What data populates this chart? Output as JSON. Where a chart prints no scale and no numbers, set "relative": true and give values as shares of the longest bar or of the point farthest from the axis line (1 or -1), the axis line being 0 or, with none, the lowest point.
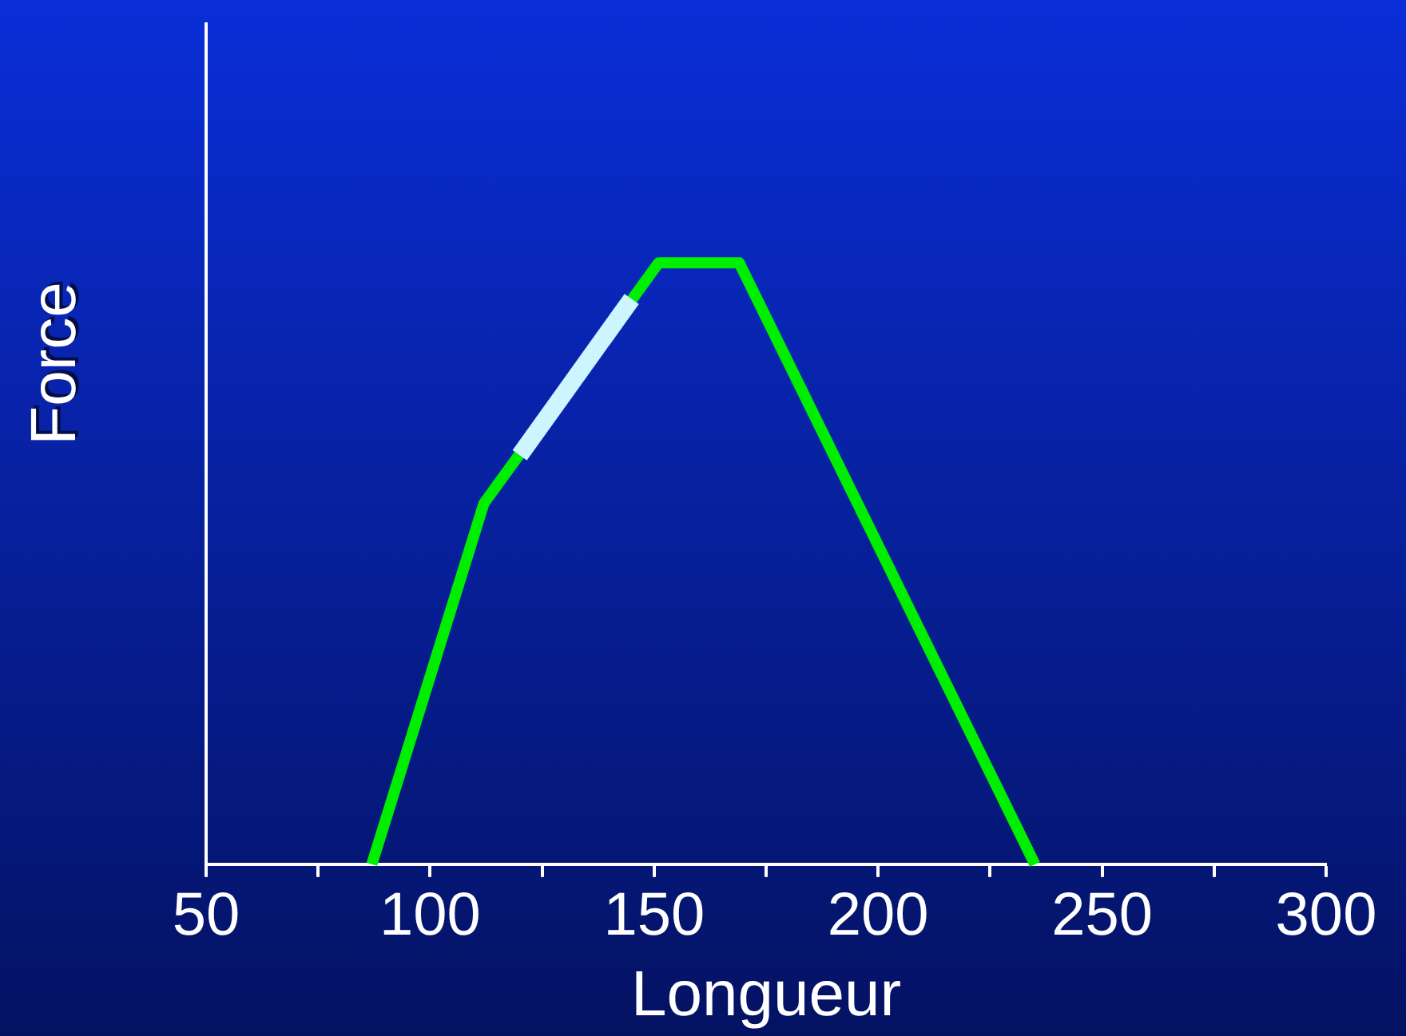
{
  "chart_data": {
    "type": "line",
    "xlabel": "Longueur",
    "ylabel": "Force",
    "relative": true,
    "xlim": [
      50,
      300
    ],
    "xticks": [
      50,
      {
        "value": 75,
        "label": null
      },
      100,
      {
        "value": 125,
        "label": null
      },
      150,
      {
        "value": 175,
        "label": null
      },
      200,
      {
        "value": 225,
        "label": null
      },
      250,
      {
        "value": 275,
        "label": null
      },
      300
    ],
    "series": [
      {
        "color": "#00ee00",
        "x": [
          87,
          112,
          151,
          169,
          235
        ],
        "values": [
          0,
          0.6,
          1,
          1,
          0
        ]
      },
      {
        "color": "#ccf5ff",
        "x": [
          120,
          145
        ],
        "values": [
          0.68,
          0.94
        ]
      }
    ],
    "grid": false,
    "legend": false,
    "marker": "none",
    "line_style": "solid"
  }
}
